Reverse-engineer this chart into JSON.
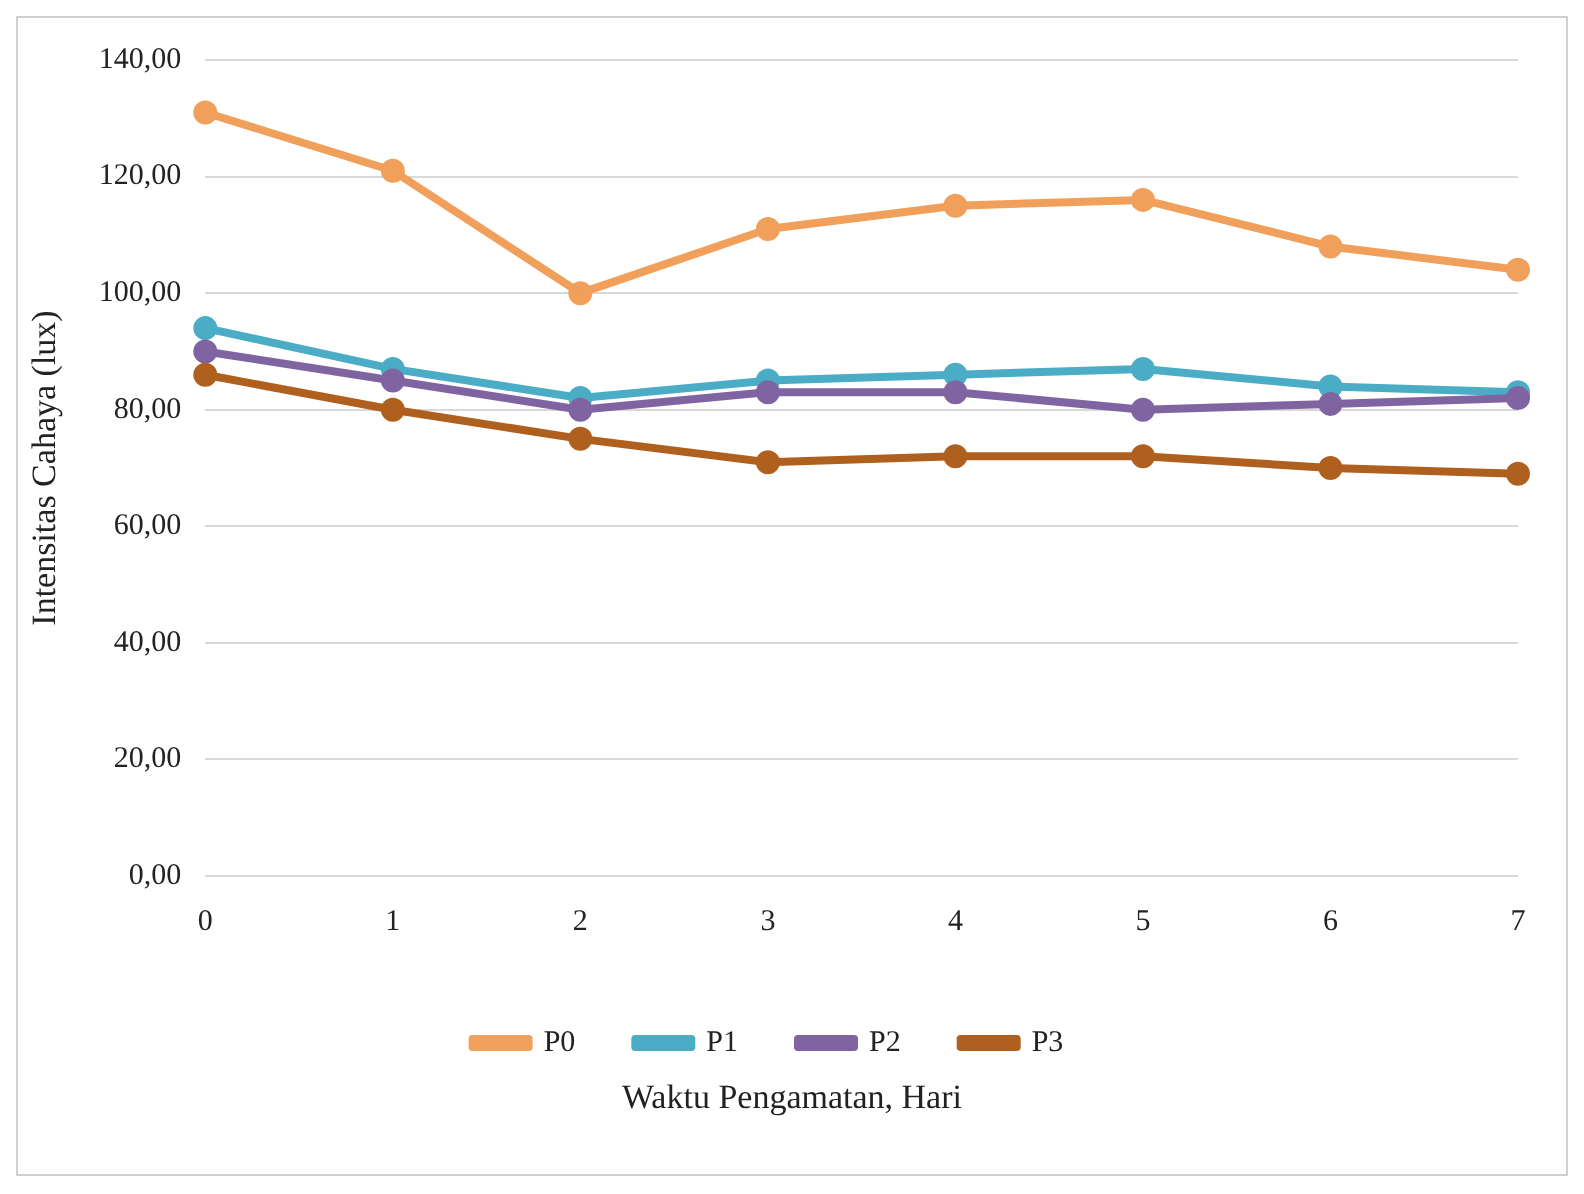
{
  "chart_data": {
    "type": "line",
    "xlabel": "Waktu Pengamatan, Hari",
    "ylabel": "Intensitas Cahaya (lux)",
    "categories": [
      "0",
      "1",
      "2",
      "3",
      "4",
      "5",
      "6",
      "7"
    ],
    "series": [
      {
        "name": "P0",
        "color": "#f0a05a",
        "values": [
          131,
          121,
          100,
          111,
          115,
          116,
          108,
          104
        ]
      },
      {
        "name": "P1",
        "color": "#4bacc6",
        "values": [
          94,
          87,
          82,
          85,
          86,
          87,
          84,
          83
        ]
      },
      {
        "name": "P2",
        "color": "#8064a2",
        "values": [
          90,
          85,
          80,
          83,
          83,
          80,
          81,
          82
        ]
      },
      {
        "name": "P3",
        "color": "#b0601e",
        "values": [
          86,
          80,
          75,
          71,
          72,
          72,
          70,
          69
        ]
      }
    ],
    "ylim": [
      0,
      140
    ],
    "yticks": [
      {
        "value": 0,
        "label": "0,00"
      },
      {
        "value": 20,
        "label": "20,00"
      },
      {
        "value": 40,
        "label": "40,00"
      },
      {
        "value": 60,
        "label": "60,00"
      },
      {
        "value": 80,
        "label": "80,00"
      },
      {
        "value": 100,
        "label": "100,00"
      },
      {
        "value": 120,
        "label": "120,00"
      },
      {
        "value": 140,
        "label": "140,00"
      }
    ],
    "grid": "y",
    "legend": "bottom",
    "marker": "circle",
    "line_style": "solid"
  }
}
